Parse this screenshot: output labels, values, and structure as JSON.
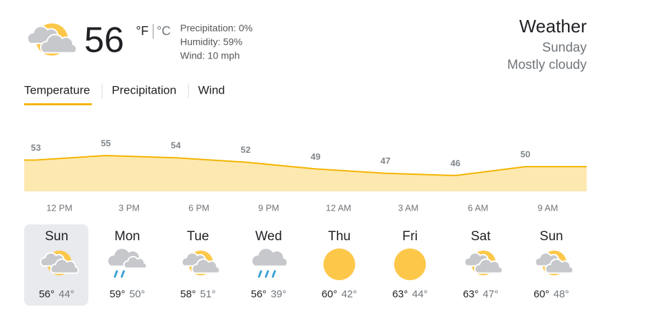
{
  "header": {
    "temperature": "56",
    "unit_f": "°F",
    "unit_c": "°C",
    "details": [
      "Precipitation: 0%",
      "Humidity: 59%",
      "Wind: 10 mph"
    ],
    "title": "Weather",
    "day": "Sunday",
    "condition": "Mostly cloudy"
  },
  "tabs": [
    "Temperature",
    "Precipitation",
    "Wind"
  ],
  "chart_data": {
    "type": "area",
    "color": "#f4b400",
    "fill": "#fde8b0",
    "categories": [
      "12 PM",
      "3 PM",
      "6 PM",
      "9 PM",
      "12 AM",
      "3 AM",
      "6 AM",
      "9 AM"
    ],
    "values": [
      53,
      55,
      54,
      52,
      49,
      47,
      46,
      50
    ]
  },
  "days": [
    {
      "name": "Sun",
      "high": "56°",
      "low": "44°"
    },
    {
      "name": "Mon",
      "high": "59°",
      "low": "50°"
    },
    {
      "name": "Tue",
      "high": "58°",
      "low": "51°"
    },
    {
      "name": "Wed",
      "high": "56°",
      "low": "39°"
    },
    {
      "name": "Thu",
      "high": "60°",
      "low": "42°"
    },
    {
      "name": "Fri",
      "high": "63°",
      "low": "44°"
    },
    {
      "name": "Sat",
      "high": "63°",
      "low": "47°"
    },
    {
      "name": "Sun",
      "high": "60°",
      "low": "48°"
    }
  ]
}
